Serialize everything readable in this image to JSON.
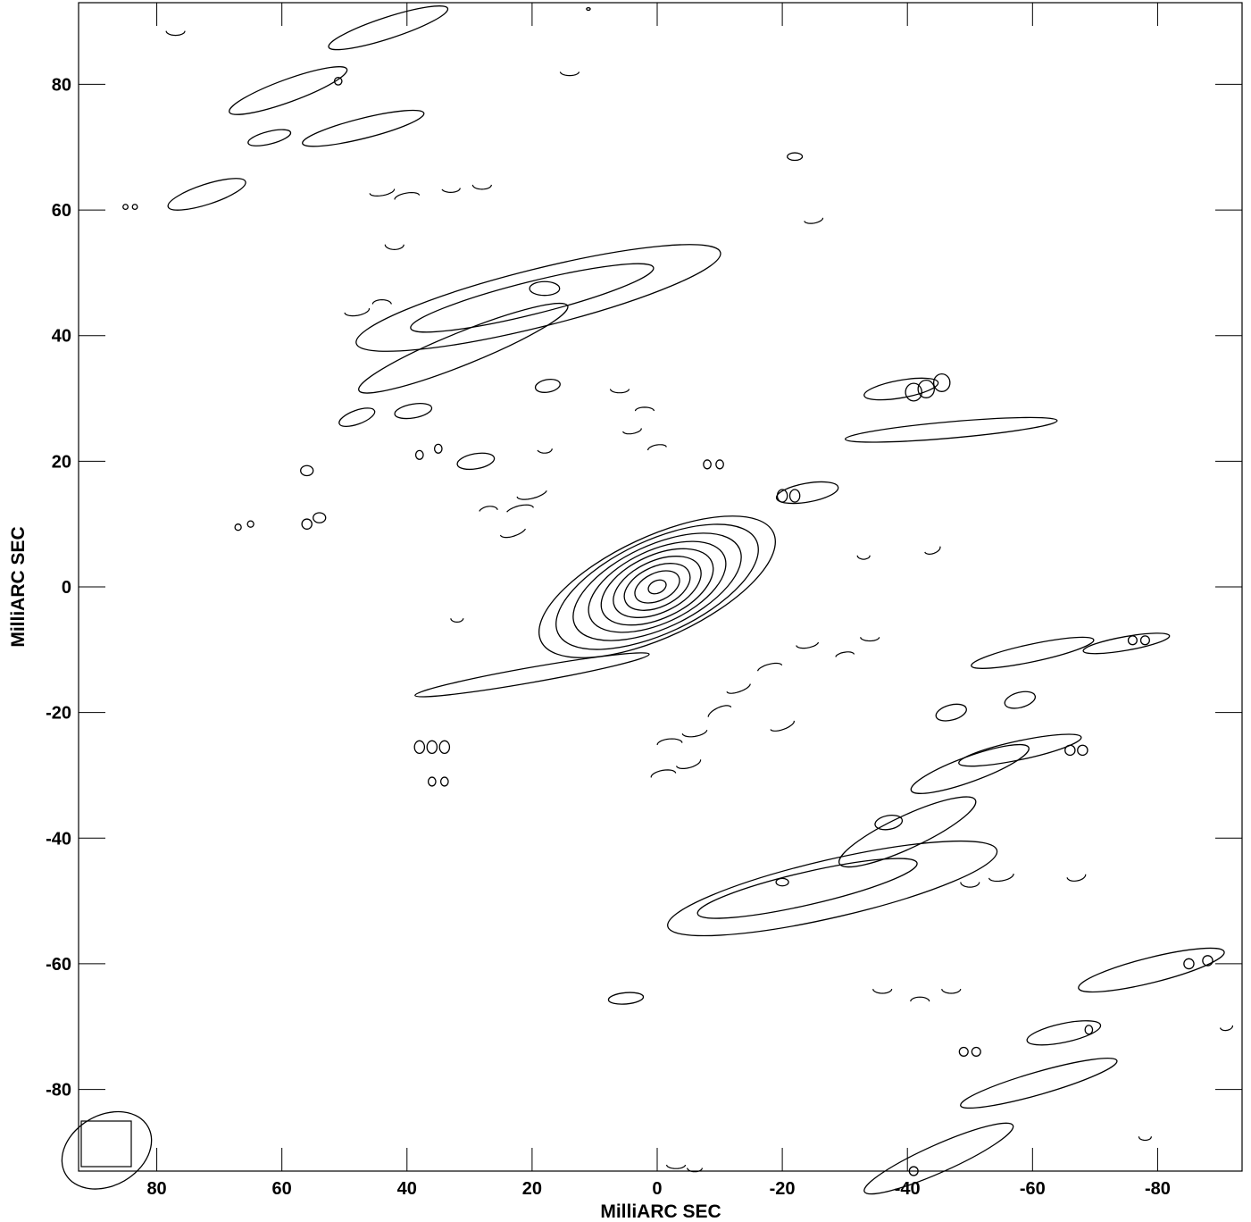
{
  "chart_data": {
    "type": "contour",
    "xlabel": "MilliARC SEC",
    "ylabel": "MilliARC SEC",
    "xlim": [
      92.5,
      -93.5
    ],
    "ylim": [
      -93,
      93
    ],
    "x_reversed": true,
    "grid": false,
    "x_ticks": [
      80,
      60,
      40,
      20,
      0,
      -20,
      -40,
      -60,
      -80
    ],
    "x_tick_labels": [
      "80",
      "60",
      "40",
      "20",
      "0",
      "-20",
      "-40",
      "-60",
      "-80"
    ],
    "y_ticks": [
      80,
      60,
      40,
      20,
      0,
      -20,
      -40,
      -60,
      -80
    ],
    "y_tick_labels": [
      "80",
      "60",
      "40",
      "20",
      "0",
      "-20",
      "-40",
      "-60",
      "-80"
    ],
    "beam": {
      "x": 88,
      "y": -89.7,
      "major": 7.6,
      "minor": 5.6,
      "angle_deg": 30
    },
    "core": {
      "x": 0,
      "y": 0,
      "rx": [
        1.5,
        3.8,
        5.6,
        7.5,
        9.6,
        11.8,
        14.5,
        17.5,
        20.5
      ],
      "ry": [
        1.0,
        2.2,
        3.2,
        4.1,
        5.0,
        5.8,
        6.6,
        7.4,
        8.0
      ],
      "angle_deg": 25
    },
    "components": [
      {
        "x": -28,
        "y": -48,
        "rx": 27,
        "ry": 4.6,
        "angle_deg": 13
      },
      {
        "x": -24,
        "y": -48,
        "rx": 18,
        "ry": 2.6,
        "angle_deg": 13
      },
      {
        "x": -20,
        "y": -47,
        "rx": 1.0,
        "ry": 0.6,
        "angle_deg": 0
      },
      {
        "x": 19,
        "y": 46,
        "rx": 30,
        "ry": 4.6,
        "angle_deg": 14
      },
      {
        "x": 20,
        "y": 46,
        "rx": 20,
        "ry": 2.6,
        "angle_deg": 14
      },
      {
        "x": 18,
        "y": 47.5,
        "rx": 2.4,
        "ry": 1.1,
        "angle_deg": 0
      },
      {
        "x": -40,
        "y": -39,
        "rx": 12,
        "ry": 2.6,
        "angle_deg": 25
      },
      {
        "x": -37,
        "y": -37.5,
        "rx": 2.2,
        "ry": 1.1,
        "angle_deg": 10
      },
      {
        "x": 31,
        "y": 38,
        "rx": 18,
        "ry": 2.6,
        "angle_deg": 22
      },
      {
        "x": 20,
        "y": -14,
        "rx": 19,
        "ry": 1.2,
        "angle_deg": 10
      },
      {
        "x": 11,
        "y": 92,
        "rx": 0.3,
        "ry": 0.2,
        "angle_deg": 0
      },
      {
        "x": 59,
        "y": 79,
        "rx": 10,
        "ry": 1.8,
        "angle_deg": 20
      },
      {
        "x": 51,
        "y": 80.5,
        "rx": 0.6,
        "ry": 0.6,
        "angle_deg": 0
      },
      {
        "x": 62,
        "y": 71.5,
        "rx": 3.5,
        "ry": 1.0,
        "angle_deg": 14
      },
      {
        "x": 47,
        "y": 73,
        "rx": 10,
        "ry": 1.6,
        "angle_deg": 14
      },
      {
        "x": 72,
        "y": 62.5,
        "rx": 6.5,
        "ry": 1.6,
        "angle_deg": 18
      },
      {
        "x": 43,
        "y": 89,
        "rx": 10,
        "ry": 1.7,
        "angle_deg": 18
      },
      {
        "x": -47,
        "y": 25,
        "rx": 17,
        "ry": 1.3,
        "angle_deg": 5
      },
      {
        "x": -39,
        "y": 31.5,
        "rx": 6,
        "ry": 1.4,
        "angle_deg": 10
      },
      {
        "x": -24,
        "y": 15,
        "rx": 5,
        "ry": 1.5,
        "angle_deg": 10
      },
      {
        "x": -50,
        "y": -29,
        "rx": 10,
        "ry": 2.0,
        "angle_deg": 20
      },
      {
        "x": -58,
        "y": -26,
        "rx": 10,
        "ry": 1.5,
        "angle_deg": 12
      },
      {
        "x": -47,
        "y": -20,
        "rx": 2.5,
        "ry": 1.2,
        "angle_deg": 15
      },
      {
        "x": -58,
        "y": -18,
        "rx": 2.5,
        "ry": 1.2,
        "angle_deg": 15
      },
      {
        "x": -60,
        "y": -10.5,
        "rx": 10,
        "ry": 1.4,
        "angle_deg": 12
      },
      {
        "x": -75,
        "y": -9,
        "rx": 7,
        "ry": 1.1,
        "angle_deg": 10
      },
      {
        "x": -79,
        "y": -61,
        "rx": 12,
        "ry": 2.0,
        "angle_deg": 14
      },
      {
        "x": -65,
        "y": -71,
        "rx": 6,
        "ry": 1.5,
        "angle_deg": 12
      },
      {
        "x": -61,
        "y": -79,
        "rx": 13,
        "ry": 1.8,
        "angle_deg": 16
      },
      {
        "x": -45,
        "y": -91,
        "rx": 13,
        "ry": 2.2,
        "angle_deg": 24
      },
      {
        "x": 5,
        "y": -65.5,
        "rx": 2.8,
        "ry": 0.9,
        "angle_deg": 5
      },
      {
        "x": 29,
        "y": 20,
        "rx": 3.0,
        "ry": 1.2,
        "angle_deg": 10
      },
      {
        "x": 39,
        "y": 28,
        "rx": 3.0,
        "ry": 1.1,
        "angle_deg": 10
      },
      {
        "x": 48,
        "y": 27,
        "rx": 3.0,
        "ry": 1.1,
        "angle_deg": 20
      },
      {
        "x": 17.5,
        "y": 32,
        "rx": 2.0,
        "ry": 1.0,
        "angle_deg": 10
      },
      {
        "x": -41,
        "y": 31,
        "rx": 1.3,
        "ry": 1.4,
        "angle_deg": 0
      },
      {
        "x": -43,
        "y": 31.5,
        "rx": 1.3,
        "ry": 1.4,
        "angle_deg": 0
      },
      {
        "x": -45.5,
        "y": 32.5,
        "rx": 1.3,
        "ry": 1.4,
        "angle_deg": 0
      },
      {
        "x": -22,
        "y": 14.5,
        "rx": 0.8,
        "ry": 1.0,
        "angle_deg": 0
      },
      {
        "x": -20,
        "y": 14.5,
        "rx": 0.8,
        "ry": 1.0,
        "angle_deg": 0
      },
      {
        "x": 56,
        "y": 18.5,
        "rx": 1.0,
        "ry": 0.8,
        "angle_deg": 0
      },
      {
        "x": 54,
        "y": 11,
        "rx": 1.0,
        "ry": 0.8,
        "angle_deg": 0
      },
      {
        "x": 56,
        "y": 10,
        "rx": 0.8,
        "ry": 0.8,
        "angle_deg": 0
      },
      {
        "x": 38,
        "y": 21,
        "rx": 0.6,
        "ry": 0.7,
        "angle_deg": 0
      },
      {
        "x": 35,
        "y": 22,
        "rx": 0.6,
        "ry": 0.7,
        "angle_deg": 0
      },
      {
        "x": 34,
        "y": -25.5,
        "rx": 0.8,
        "ry": 1.0,
        "angle_deg": 0
      },
      {
        "x": 36,
        "y": -25.5,
        "rx": 0.8,
        "ry": 1.0,
        "angle_deg": 0
      },
      {
        "x": 38,
        "y": -25.5,
        "rx": 0.8,
        "ry": 1.0,
        "angle_deg": 0
      },
      {
        "x": 34,
        "y": -31,
        "rx": 0.6,
        "ry": 0.7,
        "angle_deg": 0
      },
      {
        "x": 36,
        "y": -31,
        "rx": 0.6,
        "ry": 0.7,
        "angle_deg": 0
      },
      {
        "x": -8,
        "y": 19.5,
        "rx": 0.6,
        "ry": 0.7,
        "angle_deg": 0
      },
      {
        "x": -10,
        "y": 19.5,
        "rx": 0.6,
        "ry": 0.7,
        "angle_deg": 0
      },
      {
        "x": -68,
        "y": -26,
        "rx": 0.8,
        "ry": 0.8,
        "angle_deg": 0
      },
      {
        "x": -66,
        "y": -26,
        "rx": 0.8,
        "ry": 0.8,
        "angle_deg": 0
      },
      {
        "x": -78,
        "y": -8.5,
        "rx": 0.7,
        "ry": 0.7,
        "angle_deg": 0
      },
      {
        "x": -76,
        "y": -8.5,
        "rx": 0.7,
        "ry": 0.7,
        "angle_deg": 0
      },
      {
        "x": -85,
        "y": -60,
        "rx": 0.8,
        "ry": 0.8,
        "angle_deg": 0
      },
      {
        "x": -88,
        "y": -59.5,
        "rx": 0.8,
        "ry": 0.8,
        "angle_deg": 0
      },
      {
        "x": -51,
        "y": -74,
        "rx": 0.7,
        "ry": 0.7,
        "angle_deg": 0
      },
      {
        "x": -49,
        "y": -74,
        "rx": 0.7,
        "ry": 0.7,
        "angle_deg": 0
      },
      {
        "x": -69,
        "y": -70.5,
        "rx": 0.6,
        "ry": 0.7,
        "angle_deg": 0
      },
      {
        "x": -22,
        "y": 68.5,
        "rx": 1.2,
        "ry": 0.6,
        "angle_deg": 0
      },
      {
        "x": -41,
        "y": -93,
        "rx": 0.7,
        "ry": 0.7,
        "angle_deg": 0
      },
      {
        "x": 67,
        "y": 9.5,
        "rx": 0.5,
        "ry": 0.5,
        "angle_deg": 0
      },
      {
        "x": 65,
        "y": 10,
        "rx": 0.5,
        "ry": 0.5,
        "angle_deg": 0
      },
      {
        "x": 83.5,
        "y": 60.5,
        "rx": 0.4,
        "ry": 0.4,
        "angle_deg": 0
      },
      {
        "x": 85,
        "y": 60.5,
        "rx": 0.4,
        "ry": 0.4,
        "angle_deg": 0
      }
    ],
    "arc_fragments": [
      {
        "x": 20,
        "y": 15,
        "rx": 2.5,
        "ry": 0.9,
        "angle_deg": 15,
        "start_deg": 180,
        "end_deg": 340
      },
      {
        "x": 22,
        "y": 12,
        "rx": 2.3,
        "ry": 0.9,
        "angle_deg": 15,
        "start_deg": 0,
        "end_deg": 150
      },
      {
        "x": 23,
        "y": 9,
        "rx": 2.2,
        "ry": 0.9,
        "angle_deg": 20,
        "start_deg": 180,
        "end_deg": 330
      },
      {
        "x": 27,
        "y": 12,
        "rx": 1.5,
        "ry": 0.8,
        "angle_deg": 10,
        "start_deg": 0,
        "end_deg": 160
      },
      {
        "x": 6,
        "y": 31.5,
        "rx": 1.5,
        "ry": 0.6,
        "angle_deg": 0,
        "start_deg": 180,
        "end_deg": 360
      },
      {
        "x": 2,
        "y": 28,
        "rx": 1.5,
        "ry": 0.6,
        "angle_deg": 0,
        "start_deg": 0,
        "end_deg": 180
      },
      {
        "x": 4,
        "y": 25,
        "rx": 1.5,
        "ry": 0.6,
        "angle_deg": 10,
        "start_deg": 180,
        "end_deg": 360
      },
      {
        "x": 0,
        "y": 22,
        "rx": 1.5,
        "ry": 0.6,
        "angle_deg": 10,
        "start_deg": 0,
        "end_deg": 180
      },
      {
        "x": 18,
        "y": 22,
        "rx": 1.2,
        "ry": 0.7,
        "angle_deg": 0,
        "start_deg": 200,
        "end_deg": 360
      },
      {
        "x": -34,
        "y": -8,
        "rx": 1.5,
        "ry": 0.6,
        "angle_deg": 0,
        "start_deg": 180,
        "end_deg": 360
      },
      {
        "x": -30,
        "y": -11,
        "rx": 1.5,
        "ry": 0.6,
        "angle_deg": 10,
        "start_deg": 0,
        "end_deg": 170
      },
      {
        "x": -24,
        "y": -9,
        "rx": 1.8,
        "ry": 0.7,
        "angle_deg": 10,
        "start_deg": 180,
        "end_deg": 350
      },
      {
        "x": -18,
        "y": -13,
        "rx": 2.0,
        "ry": 0.7,
        "angle_deg": 15,
        "start_deg": 0,
        "end_deg": 170
      },
      {
        "x": -13,
        "y": -16,
        "rx": 2.0,
        "ry": 0.7,
        "angle_deg": 20,
        "start_deg": 180,
        "end_deg": 350
      },
      {
        "x": -10,
        "y": -20,
        "rx": 2.0,
        "ry": 0.8,
        "angle_deg": 25,
        "start_deg": 0,
        "end_deg": 170
      },
      {
        "x": -6,
        "y": -23,
        "rx": 2.0,
        "ry": 0.8,
        "angle_deg": 10,
        "start_deg": 180,
        "end_deg": 350
      },
      {
        "x": -2,
        "y": -25,
        "rx": 2.0,
        "ry": 0.8,
        "angle_deg": 5,
        "start_deg": 0,
        "end_deg": 180
      },
      {
        "x": -5,
        "y": -28,
        "rx": 2.0,
        "ry": 0.8,
        "angle_deg": 15,
        "start_deg": 180,
        "end_deg": 360
      },
      {
        "x": -1,
        "y": -30,
        "rx": 2.0,
        "ry": 0.8,
        "angle_deg": 10,
        "start_deg": 0,
        "end_deg": 180
      },
      {
        "x": -20,
        "y": -22,
        "rx": 2.0,
        "ry": 0.7,
        "angle_deg": 20,
        "start_deg": 180,
        "end_deg": 360
      },
      {
        "x": 48,
        "y": 44,
        "rx": 2.0,
        "ry": 0.8,
        "angle_deg": 10,
        "start_deg": 180,
        "end_deg": 360
      },
      {
        "x": 44,
        "y": 45,
        "rx": 1.5,
        "ry": 0.7,
        "angle_deg": 0,
        "start_deg": 0,
        "end_deg": 180
      },
      {
        "x": 42,
        "y": 54.5,
        "rx": 1.5,
        "ry": 0.8,
        "angle_deg": 0,
        "start_deg": 180,
        "end_deg": 360
      },
      {
        "x": 44,
        "y": 63,
        "rx": 2.0,
        "ry": 0.7,
        "angle_deg": 10,
        "start_deg": 180,
        "end_deg": 360
      },
      {
        "x": 40,
        "y": 62,
        "rx": 2.0,
        "ry": 0.7,
        "angle_deg": 10,
        "start_deg": 0,
        "end_deg": 180
      },
      {
        "x": 33,
        "y": 63.5,
        "rx": 1.5,
        "ry": 0.7,
        "angle_deg": 0,
        "start_deg": 200,
        "end_deg": 360
      },
      {
        "x": 28,
        "y": 64,
        "rx": 1.5,
        "ry": 0.7,
        "angle_deg": 0,
        "start_deg": 180,
        "end_deg": 360
      },
      {
        "x": 77,
        "y": 88.5,
        "rx": 1.5,
        "ry": 0.7,
        "angle_deg": 0,
        "start_deg": 180,
        "end_deg": 360
      },
      {
        "x": 14,
        "y": 82,
        "rx": 1.5,
        "ry": 0.6,
        "angle_deg": 0,
        "start_deg": 180,
        "end_deg": 360
      },
      {
        "x": -25,
        "y": 58.5,
        "rx": 1.5,
        "ry": 0.6,
        "angle_deg": 10,
        "start_deg": 180,
        "end_deg": 360
      },
      {
        "x": -33,
        "y": 5,
        "rx": 1.0,
        "ry": 0.6,
        "angle_deg": 0,
        "start_deg": 180,
        "end_deg": 360
      },
      {
        "x": -44,
        "y": 6,
        "rx": 1.3,
        "ry": 0.7,
        "angle_deg": 20,
        "start_deg": 180,
        "end_deg": 360
      },
      {
        "x": 32,
        "y": -5,
        "rx": 1.0,
        "ry": 0.6,
        "angle_deg": 0,
        "start_deg": 180,
        "end_deg": 360
      },
      {
        "x": -50,
        "y": -47,
        "rx": 1.5,
        "ry": 0.8,
        "angle_deg": 0,
        "start_deg": 180,
        "end_deg": 360
      },
      {
        "x": -55,
        "y": -46,
        "rx": 2.0,
        "ry": 0.8,
        "angle_deg": 10,
        "start_deg": 180,
        "end_deg": 360
      },
      {
        "x": -67,
        "y": -46,
        "rx": 1.5,
        "ry": 0.8,
        "angle_deg": 10,
        "start_deg": 180,
        "end_deg": 360
      },
      {
        "x": -36,
        "y": -64,
        "rx": 1.5,
        "ry": 0.7,
        "angle_deg": 0,
        "start_deg": 180,
        "end_deg": 360
      },
      {
        "x": -42,
        "y": -66,
        "rx": 1.5,
        "ry": 0.7,
        "angle_deg": 0,
        "start_deg": 0,
        "end_deg": 180
      },
      {
        "x": -47,
        "y": -64,
        "rx": 1.5,
        "ry": 0.7,
        "angle_deg": 0,
        "start_deg": 180,
        "end_deg": 360
      },
      {
        "x": -3,
        "y": -92,
        "rx": 1.5,
        "ry": 0.6,
        "angle_deg": 0,
        "start_deg": 180,
        "end_deg": 360
      },
      {
        "x": -6,
        "y": -92.5,
        "rx": 1.2,
        "ry": 0.6,
        "angle_deg": 0,
        "start_deg": 180,
        "end_deg": 360
      },
      {
        "x": -91,
        "y": -70,
        "rx": 1.0,
        "ry": 0.6,
        "angle_deg": 10,
        "start_deg": 180,
        "end_deg": 360
      },
      {
        "x": -78,
        "y": -87.5,
        "rx": 1.0,
        "ry": 0.6,
        "angle_deg": 0,
        "start_deg": 180,
        "end_deg": 360
      }
    ]
  }
}
